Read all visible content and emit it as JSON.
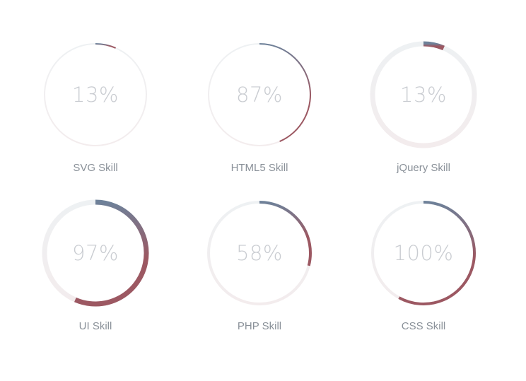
{
  "colors": {
    "arc_start": "#6e8199",
    "arc_end": "#9c5862",
    "track_start": "#eef1f3",
    "track_end": "#f3eced"
  },
  "skills": [
    {
      "label": "SVG Skill",
      "value_text": "13%",
      "value": 13,
      "style": "thin"
    },
    {
      "label": "HTML5 Skill",
      "value_text": "87%",
      "value": 87,
      "style": "thin"
    },
    {
      "label": "jQuery Skill",
      "value_text": "13%",
      "value": 13,
      "style": "thick"
    },
    {
      "label": "UI Skill",
      "value_text": "97%",
      "value": 97,
      "style": "thick"
    },
    {
      "label": "PHP Skill",
      "value_text": "58%",
      "value": 58,
      "style": "medium"
    },
    {
      "label": "CSS Skill",
      "value_text": "100%",
      "value": 100,
      "style": "medium"
    }
  ]
}
